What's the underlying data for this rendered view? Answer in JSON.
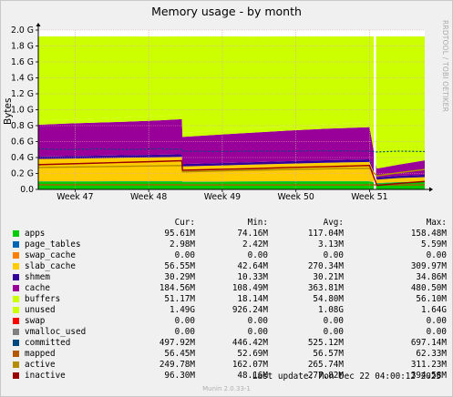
{
  "title": "Memory usage - by month",
  "vendor": "RRDTOOL / TOBI OETIKER",
  "footer": "Munin 2.0.33-1",
  "last_update": "Last update:  Mon Dec 22 04:00:12 2025",
  "legend_headers": {
    "cur": "Cur:",
    "min": "Min:",
    "avg": "Avg:",
    "max": "Max:"
  },
  "chart_data": {
    "type": "area",
    "title": "Memory usage - by month",
    "ylabel": "Bytes",
    "ylim": [
      0,
      2.0
    ],
    "y_unit": "G",
    "yticks": [
      0.0,
      0.2,
      0.4,
      0.6,
      0.8,
      1.0,
      1.2,
      1.4,
      1.6,
      1.8,
      2.0
    ],
    "ytick_labels": [
      "0.0",
      "0.2 G",
      "0.4 G",
      "0.6 G",
      "0.8 G",
      "1.0 G",
      "1.2 G",
      "1.4 G",
      "1.6 G",
      "1.8 G",
      "2.0 G"
    ],
    "xticks": [
      "Week 47",
      "Week 48",
      "Week 49",
      "Week 50",
      "Week 51"
    ],
    "x_range_weeks": [
      46.5,
      51.75
    ],
    "gap_at_week": 51.07,
    "grid": true,
    "stack_order": [
      "apps",
      "page_tables",
      "swap_cache",
      "slab_cache",
      "shmem",
      "cache",
      "buffers",
      "unused"
    ],
    "line_series": [
      "committed",
      "mapped",
      "active",
      "inactive"
    ],
    "series": [
      {
        "name": "apps",
        "color": "#00cc00",
        "cur": "95.61M",
        "min": "74.16M",
        "avg": "117.04M",
        "max": "158.48M",
        "values": [
          0.098,
          0.098,
          0.099,
          0.1,
          0.1,
          0.1,
          0.095,
          0.096,
          0.098,
          0.1,
          0.101,
          0.102,
          0.075,
          0.09,
          0.096
        ]
      },
      {
        "name": "page_tables",
        "color": "#0066b3",
        "cur": "2.98M",
        "min": "2.42M",
        "avg": "3.13M",
        "max": "5.59M",
        "values": [
          0.003,
          0.003,
          0.003,
          0.003,
          0.003,
          0.003,
          0.003,
          0.003,
          0.003,
          0.003,
          0.003,
          0.003,
          0.003,
          0.003,
          0.003
        ]
      },
      {
        "name": "swap_cache",
        "color": "#ff8000",
        "cur": "0.00",
        "min": "0.00",
        "avg": "0.00",
        "max": "0.00",
        "values": [
          0,
          0,
          0,
          0,
          0,
          0,
          0,
          0,
          0,
          0,
          0,
          0,
          0,
          0,
          0
        ]
      },
      {
        "name": "slab_cache",
        "color": "#ffcc00",
        "cur": "56.55M",
        "min": "42.64M",
        "avg": "270.34M",
        "max": "309.97M",
        "values": [
          0.28,
          0.285,
          0.29,
          0.295,
          0.3,
          0.305,
          0.19,
          0.2,
          0.21,
          0.22,
          0.23,
          0.24,
          0.045,
          0.05,
          0.055
        ]
      },
      {
        "name": "shmem",
        "color": "#330099",
        "cur": "30.29M",
        "min": "10.33M",
        "avg": "30.21M",
        "max": "34.86M",
        "values": [
          0.03,
          0.031,
          0.031,
          0.032,
          0.032,
          0.033,
          0.03,
          0.03,
          0.031,
          0.031,
          0.032,
          0.032,
          0.028,
          0.029,
          0.03
        ]
      },
      {
        "name": "cache",
        "color": "#990099",
        "cur": "184.56M",
        "min": "108.49M",
        "avg": "363.81M",
        "max": "480.50M",
        "values": [
          0.4,
          0.41,
          0.415,
          0.42,
          0.43,
          0.44,
          0.34,
          0.355,
          0.37,
          0.385,
          0.395,
          0.405,
          0.11,
          0.14,
          0.18
        ]
      },
      {
        "name": "buffers",
        "color": "#ccff00",
        "cur": "51.17M",
        "min": "18.14M",
        "avg": "54.80M",
        "max": "56.10M",
        "values": [
          0.05,
          0.052,
          0.053,
          0.054,
          0.055,
          0.055,
          0.052,
          0.053,
          0.054,
          0.055,
          0.055,
          0.055,
          0.025,
          0.04,
          0.05
        ]
      },
      {
        "name": "unused",
        "color": "#ccff00",
        "cur": "1.49G",
        "min": "926.24M",
        "avg": "1.08G",
        "max": "1.64G",
        "values": [
          1.059,
          1.041,
          1.029,
          1.016,
          0.999,
          0.984,
          1.21,
          1.183,
          1.153,
          1.126,
          1.104,
          1.083,
          1.634,
          1.568,
          1.506
        ]
      },
      {
        "name": "swap",
        "color": "#ff0000",
        "cur": "0.00",
        "min": "0.00",
        "avg": "0.00",
        "max": "0.00"
      },
      {
        "name": "vmalloc_used",
        "color": "#808080",
        "cur": "0.00",
        "min": "0.00",
        "avg": "0.00",
        "max": "0.00"
      },
      {
        "name": "committed",
        "color": "#00487d",
        "cur": "497.92M",
        "min": "446.42M",
        "avg": "525.12M",
        "max": "697.14M",
        "values": [
          0.51,
          0.5,
          0.51,
          0.5,
          0.51,
          0.505,
          0.48,
          0.475,
          0.48,
          0.48,
          0.485,
          0.48,
          0.47,
          0.48,
          0.475
        ]
      },
      {
        "name": "mapped",
        "color": "#b35a00",
        "cur": "56.45M",
        "min": "52.69M",
        "avg": "56.57M",
        "max": "62.33M",
        "values": [
          0.058,
          0.058,
          0.058,
          0.058,
          0.058,
          0.058,
          0.056,
          0.056,
          0.056,
          0.056,
          0.056,
          0.056,
          0.056,
          0.057,
          0.057
        ]
      },
      {
        "name": "active",
        "color": "#b38f00",
        "cur": "249.78M",
        "min": "162.07M",
        "avg": "265.74M",
        "max": "311.23M",
        "values": [
          0.275,
          0.28,
          0.285,
          0.29,
          0.295,
          0.3,
          0.22,
          0.23,
          0.24,
          0.25,
          0.258,
          0.265,
          0.17,
          0.21,
          0.25
        ]
      },
      {
        "name": "inactive",
        "color": "#990000",
        "cur": "96.30M",
        "min": "48.16M",
        "avg": "277.82M",
        "max": "394.58M",
        "values": [
          0.31,
          0.32,
          0.33,
          0.34,
          0.35,
          0.36,
          0.24,
          0.25,
          0.26,
          0.275,
          0.285,
          0.3,
          0.05,
          0.075,
          0.1
        ]
      }
    ],
    "x_weeks": [
      46.5,
      46.9,
      47.3,
      47.7,
      48.1,
      48.45,
      48.46,
      48.9,
      49.4,
      49.9,
      50.4,
      51.0,
      51.1,
      51.4,
      51.75
    ]
  }
}
